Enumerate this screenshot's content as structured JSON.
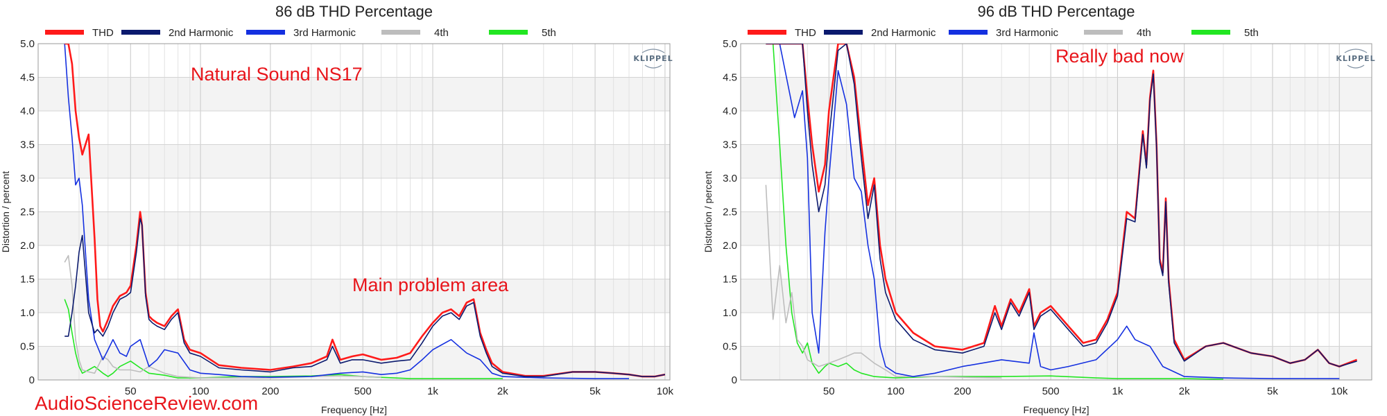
{
  "watermark": "AudioScienceReview.com",
  "logo_text": "KLIPPEL",
  "colors": {
    "THD": "#ff1a1a",
    "2nd Harmonic": "#0b1a6e",
    "3rd Harmonic": "#1430e0",
    "4th": "#bdbdbd",
    "5th": "#22e622"
  },
  "chart_data": [
    {
      "type": "line",
      "title": "86 dB THD Percentage",
      "xlabel": "Frequency [Hz]",
      "ylabel": "Distortion / percent",
      "x_scale": "log",
      "xlim": [
        20,
        10500
      ],
      "ylim": [
        0,
        5
      ],
      "x_ticks": [
        50,
        100,
        200,
        500,
        1000,
        2000,
        5000,
        10000
      ],
      "x_tick_labels": [
        "50",
        "100",
        "200",
        "500",
        "1k",
        "2k",
        "5k",
        "10k"
      ],
      "y_ticks": [
        0,
        0.5,
        1.0,
        1.5,
        2.0,
        2.5,
        3.0,
        3.5,
        4.0,
        4.5,
        5.0
      ],
      "y_tick_labels": [
        "0",
        "0.5",
        "1.0",
        "1.5",
        "2.0",
        "2.5",
        "3.0",
        "3.5",
        "4.0",
        "4.5",
        "5.0"
      ],
      "grid": true,
      "legend_position": "top",
      "annotations": [
        "Natural Sound NS17",
        "Main problem area"
      ],
      "series": [
        {
          "name": "THD",
          "x": [
            26,
            27,
            28,
            29,
            30,
            31,
            33,
            35,
            36,
            37,
            38,
            40,
            42,
            45,
            48,
            50,
            53,
            55,
            56,
            58,
            60,
            62,
            65,
            70,
            75,
            80,
            85,
            90,
            100,
            120,
            150,
            200,
            250,
            300,
            350,
            370,
            400,
            450,
            500,
            600,
            700,
            800,
            900,
            1000,
            1100,
            1200,
            1300,
            1400,
            1500,
            1600,
            1700,
            1800,
            2000,
            2500,
            3000,
            4000,
            5000,
            6000,
            7000,
            8000,
            9000,
            10000
          ],
          "y": [
            5.0,
            5.0,
            4.7,
            4.0,
            3.6,
            3.35,
            3.65,
            2.1,
            1.2,
            0.8,
            0.72,
            0.9,
            1.1,
            1.25,
            1.3,
            1.4,
            2.0,
            2.5,
            2.3,
            1.3,
            0.95,
            0.9,
            0.85,
            0.8,
            0.95,
            1.05,
            0.6,
            0.45,
            0.4,
            0.22,
            0.18,
            0.15,
            0.2,
            0.25,
            0.35,
            0.6,
            0.3,
            0.35,
            0.38,
            0.3,
            0.33,
            0.4,
            0.65,
            0.85,
            1.0,
            1.05,
            0.95,
            1.15,
            1.2,
            0.7,
            0.45,
            0.25,
            0.12,
            0.06,
            0.06,
            0.12,
            0.12,
            0.1,
            0.08,
            0.05,
            0.05,
            0.08
          ]
        },
        {
          "name": "2nd Harmonic",
          "x": [
            26,
            27,
            28,
            29,
            30,
            31,
            33,
            35,
            36,
            37,
            38,
            40,
            42,
            45,
            48,
            50,
            53,
            55,
            56,
            58,
            60,
            62,
            65,
            70,
            75,
            80,
            85,
            90,
            100,
            120,
            150,
            200,
            250,
            300,
            350,
            370,
            400,
            450,
            500,
            600,
            700,
            800,
            900,
            1000,
            1100,
            1200,
            1300,
            1400,
            1500,
            1600,
            1700,
            1800,
            2000,
            2500,
            3000,
            4000,
            5000,
            6000,
            7000,
            8000,
            9000,
            10000
          ],
          "y": [
            0.65,
            0.65,
            1.0,
            1.4,
            1.9,
            2.15,
            1.0,
            0.7,
            0.75,
            0.7,
            0.65,
            0.8,
            1.0,
            1.2,
            1.25,
            1.3,
            1.9,
            2.4,
            2.3,
            1.25,
            0.9,
            0.85,
            0.8,
            0.75,
            0.9,
            1.0,
            0.55,
            0.4,
            0.35,
            0.18,
            0.15,
            0.12,
            0.18,
            0.2,
            0.3,
            0.5,
            0.25,
            0.3,
            0.3,
            0.25,
            0.28,
            0.3,
            0.55,
            0.8,
            0.95,
            1.0,
            0.9,
            1.1,
            1.15,
            0.65,
            0.4,
            0.2,
            0.1,
            0.05,
            0.05,
            0.12,
            0.12,
            0.1,
            0.08,
            0.05,
            0.05,
            0.08
          ]
        },
        {
          "name": "3rd Harmonic",
          "x": [
            26,
            27,
            28,
            29,
            30,
            31,
            33,
            35,
            38,
            40,
            42,
            45,
            48,
            50,
            55,
            60,
            65,
            70,
            80,
            90,
            100,
            120,
            150,
            200,
            300,
            400,
            500,
            600,
            700,
            800,
            900,
            1000,
            1200,
            1400,
            1600,
            1800,
            2000,
            3000,
            5000,
            7000
          ],
          "y": [
            5.0,
            4.2,
            3.6,
            2.9,
            3.0,
            2.6,
            1.2,
            0.6,
            0.3,
            0.45,
            0.6,
            0.4,
            0.35,
            0.5,
            0.6,
            0.2,
            0.3,
            0.45,
            0.4,
            0.15,
            0.1,
            0.08,
            0.05,
            0.04,
            0.05,
            0.1,
            0.12,
            0.08,
            0.1,
            0.15,
            0.3,
            0.45,
            0.6,
            0.4,
            0.3,
            0.1,
            0.05,
            0.03,
            0.02,
            0.02
          ]
        },
        {
          "name": "4th",
          "x": [
            26,
            27,
            28,
            29,
            30,
            31,
            33,
            35,
            38,
            40,
            42,
            45,
            50,
            55,
            60,
            70,
            80,
            100,
            150,
            200,
            300,
            400,
            500,
            600
          ],
          "y": [
            1.75,
            1.85,
            1.4,
            0.6,
            0.3,
            0.15,
            0.12,
            0.1,
            0.35,
            0.3,
            0.2,
            0.15,
            0.15,
            0.12,
            0.2,
            0.1,
            0.05,
            0.03,
            0.03,
            0.03,
            0.05,
            0.06,
            0.05,
            0.04
          ]
        },
        {
          "name": "5th",
          "x": [
            26,
            27,
            28,
            29,
            30,
            31,
            33,
            35,
            38,
            40,
            42,
            45,
            48,
            50,
            55,
            60,
            70,
            80,
            100,
            150,
            200,
            300,
            400,
            500,
            800,
            1000,
            2000
          ],
          "y": [
            1.2,
            1.05,
            0.7,
            0.4,
            0.2,
            0.1,
            0.15,
            0.2,
            0.1,
            0.05,
            0.1,
            0.2,
            0.25,
            0.28,
            0.18,
            0.1,
            0.07,
            0.03,
            0.03,
            0.05,
            0.05,
            0.06,
            0.08,
            0.05,
            0.02,
            0.02,
            0.02
          ]
        }
      ]
    },
    {
      "type": "line",
      "title": "96 dB THD Percentage",
      "xlabel": "Frequency [Hz]",
      "ylabel": "Distortion / percent",
      "x_scale": "log",
      "xlim": [
        20,
        14000
      ],
      "ylim": [
        0,
        5
      ],
      "x_ticks": [
        50,
        100,
        200,
        500,
        1000,
        2000,
        5000,
        10000
      ],
      "x_tick_labels": [
        "50",
        "100",
        "200",
        "500",
        "1k",
        "2k",
        "5k",
        "10k"
      ],
      "y_ticks": [
        0,
        0.5,
        1.0,
        1.5,
        2.0,
        2.5,
        3.0,
        3.5,
        4.0,
        4.5,
        5.0
      ],
      "y_tick_labels": [
        "0",
        "0.5",
        "1.0",
        "1.5",
        "2.0",
        "2.5",
        "3.0",
        "3.5",
        "4.0",
        "4.5",
        "5.0"
      ],
      "grid": true,
      "legend_position": "top",
      "annotations": [
        "Really bad now"
      ],
      "series": [
        {
          "name": "THD",
          "x": [
            26,
            30,
            35,
            38,
            40,
            42,
            45,
            48,
            50,
            55,
            60,
            65,
            70,
            75,
            80,
            85,
            90,
            100,
            120,
            150,
            200,
            250,
            280,
            300,
            330,
            360,
            400,
            420,
            450,
            500,
            600,
            700,
            800,
            900,
            1000,
            1100,
            1200,
            1300,
            1350,
            1400,
            1450,
            1500,
            1550,
            1600,
            1650,
            1700,
            1800,
            2000,
            2500,
            3000,
            4000,
            5000,
            6000,
            7000,
            8000,
            9000,
            10000,
            12000
          ],
          "y": [
            5.0,
            5.0,
            5.0,
            5.0,
            4.2,
            3.5,
            2.8,
            3.2,
            4.0,
            5.0,
            5.0,
            4.5,
            3.5,
            2.6,
            3.0,
            2.0,
            1.5,
            1.0,
            0.7,
            0.5,
            0.45,
            0.55,
            1.1,
            0.8,
            1.2,
            1.0,
            1.35,
            0.8,
            1.0,
            1.1,
            0.8,
            0.55,
            0.6,
            0.9,
            1.3,
            2.5,
            2.4,
            3.7,
            3.2,
            4.2,
            4.6,
            3.5,
            1.8,
            1.6,
            2.7,
            1.5,
            0.6,
            0.3,
            0.5,
            0.55,
            0.4,
            0.35,
            0.25,
            0.3,
            0.45,
            0.25,
            0.2,
            0.3
          ]
        },
        {
          "name": "2nd Harmonic",
          "x": [
            26,
            30,
            35,
            38,
            40,
            42,
            45,
            48,
            50,
            55,
            60,
            65,
            70,
            75,
            80,
            85,
            90,
            100,
            120,
            150,
            200,
            250,
            280,
            300,
            330,
            360,
            400,
            420,
            450,
            500,
            600,
            700,
            800,
            900,
            1000,
            1100,
            1200,
            1300,
            1350,
            1400,
            1450,
            1500,
            1550,
            1600,
            1650,
            1700,
            1800,
            2000,
            2500,
            3000,
            4000,
            5000,
            6000,
            7000,
            8000,
            9000,
            10000,
            12000
          ],
          "y": [
            5.0,
            5.0,
            5.0,
            5.0,
            4.0,
            3.2,
            2.5,
            2.9,
            3.6,
            4.9,
            5.0,
            4.4,
            3.3,
            2.4,
            2.9,
            1.8,
            1.3,
            0.9,
            0.6,
            0.45,
            0.4,
            0.5,
            1.0,
            0.75,
            1.15,
            0.95,
            1.3,
            0.75,
            0.95,
            1.05,
            0.75,
            0.5,
            0.55,
            0.85,
            1.25,
            2.4,
            2.35,
            3.65,
            3.15,
            4.15,
            4.55,
            3.45,
            1.75,
            1.55,
            2.65,
            1.45,
            0.55,
            0.28,
            0.5,
            0.55,
            0.4,
            0.35,
            0.25,
            0.3,
            0.45,
            0.25,
            0.2,
            0.28
          ]
        },
        {
          "name": "3rd Harmonic",
          "x": [
            26,
            30,
            35,
            38,
            40,
            42,
            45,
            48,
            50,
            55,
            60,
            65,
            70,
            75,
            80,
            85,
            90,
            100,
            120,
            150,
            200,
            300,
            400,
            420,
            450,
            500,
            600,
            800,
            1000,
            1100,
            1200,
            1400,
            1600,
            2000,
            3000,
            5000,
            10000
          ],
          "y": [
            5.0,
            5.0,
            3.9,
            4.3,
            3.3,
            1.0,
            0.4,
            2.2,
            3.0,
            4.6,
            4.1,
            3.0,
            2.8,
            2.0,
            1.5,
            0.5,
            0.2,
            0.1,
            0.05,
            0.1,
            0.2,
            0.3,
            0.25,
            0.7,
            0.2,
            0.15,
            0.2,
            0.3,
            0.6,
            0.8,
            0.6,
            0.5,
            0.2,
            0.05,
            0.03,
            0.02,
            0.02
          ]
        },
        {
          "name": "4th",
          "x": [
            26,
            28,
            30,
            32,
            34,
            36,
            38,
            40,
            45,
            50,
            55,
            60,
            65,
            70,
            80,
            90,
            100,
            150,
            200,
            300
          ],
          "y": [
            2.9,
            0.9,
            1.7,
            0.85,
            1.3,
            0.6,
            0.5,
            0.3,
            0.2,
            0.25,
            0.3,
            0.35,
            0.4,
            0.4,
            0.25,
            0.15,
            0.05,
            0.05,
            0.04,
            0.03
          ]
        },
        {
          "name": "5th",
          "x": [
            26,
            28,
            30,
            32,
            34,
            36,
            38,
            40,
            42,
            45,
            48,
            50,
            55,
            60,
            65,
            70,
            80,
            100,
            150,
            200,
            300,
            500,
            800,
            1000,
            2000,
            3000
          ],
          "y": [
            5.0,
            5.0,
            3.5,
            2.0,
            1.0,
            0.55,
            0.4,
            0.55,
            0.25,
            0.1,
            0.2,
            0.25,
            0.2,
            0.25,
            0.15,
            0.1,
            0.05,
            0.03,
            0.05,
            0.05,
            0.05,
            0.06,
            0.03,
            0.02,
            0.02,
            0.01
          ]
        }
      ]
    }
  ]
}
